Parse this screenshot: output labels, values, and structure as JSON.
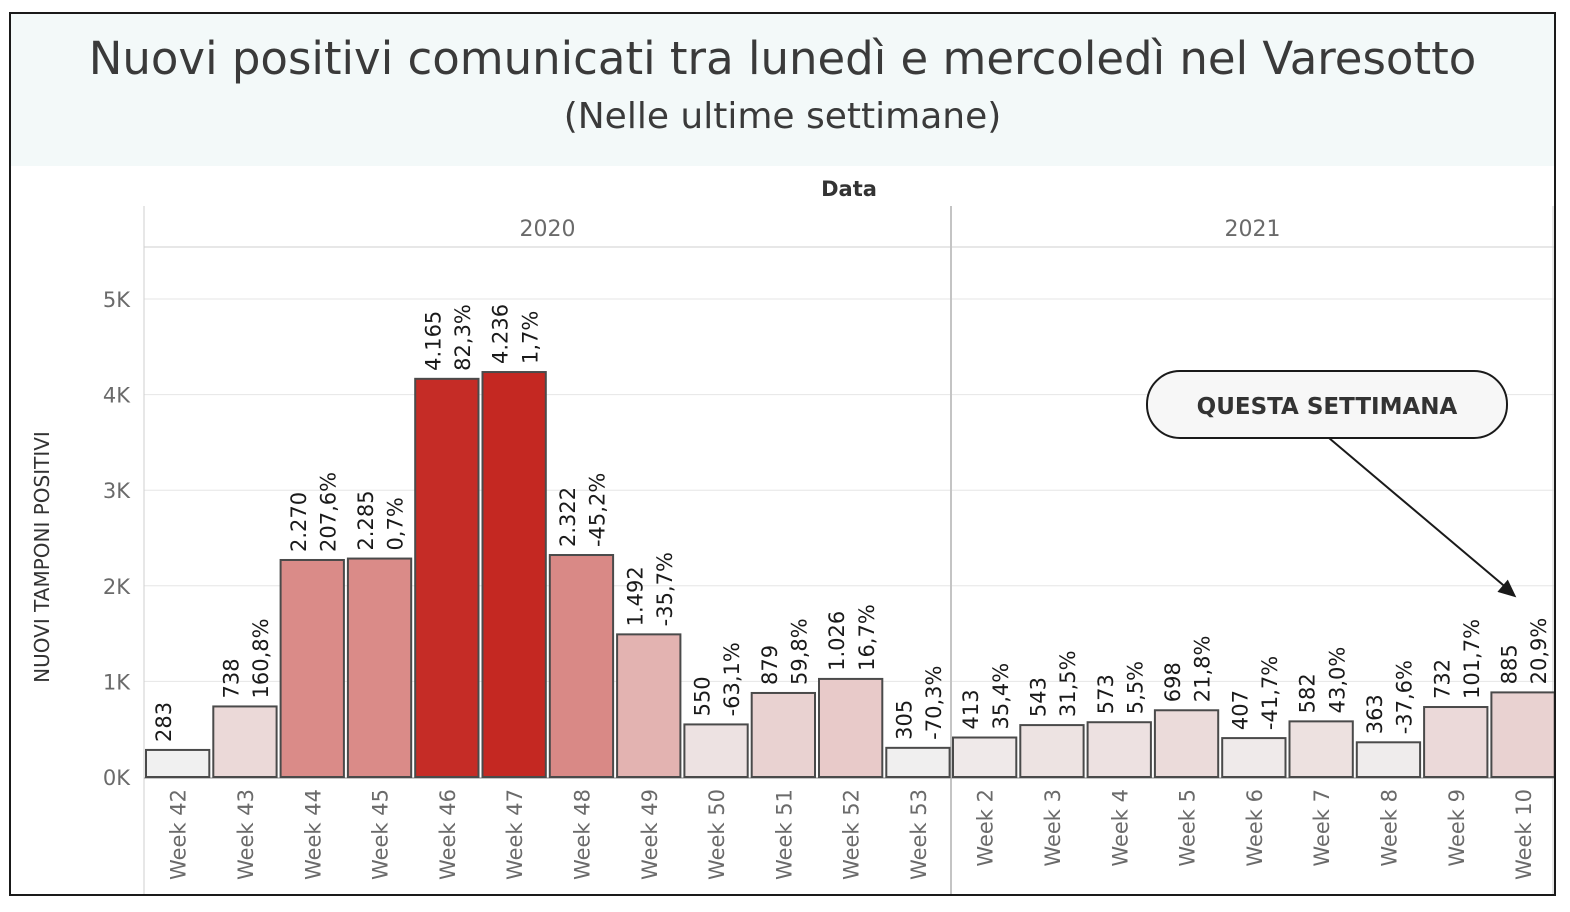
{
  "header": {
    "title": "Nuovi positivi comunicati tra lunedì e mercoledì nel Varesotto",
    "subtitle": "(Nelle ultime settimane)"
  },
  "chart_data": {
    "type": "bar",
    "xlabel": "Data",
    "ylabel": "NUOVI TAMPONI POSITIVI",
    "ylim": [
      0,
      5500
    ],
    "yticks": [
      0,
      1000,
      2000,
      3000,
      4000,
      5000
    ],
    "ytick_labels": [
      "0K",
      "1K",
      "2K",
      "3K",
      "4K",
      "5K"
    ],
    "grid": true,
    "groups": [
      {
        "name": "2020",
        "categories": [
          "Week 42",
          "Week 43",
          "Week 44",
          "Week 45",
          "Week 46",
          "Week 47",
          "Week 48",
          "Week 49",
          "Week 50",
          "Week 51",
          "Week 52",
          "Week 53"
        ],
        "values": [
          283,
          738,
          2270,
          2285,
          4165,
          4236,
          2322,
          1492,
          550,
          879,
          1026,
          305
        ],
        "value_labels": [
          "283",
          "738",
          "2.270",
          "2.285",
          "4.165",
          "4.236",
          "2.322",
          "1.492",
          "550",
          "879",
          "1.026",
          "305"
        ],
        "pct_labels": [
          "",
          "160,8%",
          "207,6%",
          "0,7%",
          "82,3%",
          "1,7%",
          "-45,2%",
          "-35,7%",
          "-63,1%",
          "59,8%",
          "16,7%",
          "-70,3%"
        ]
      },
      {
        "name": "2021",
        "categories": [
          "Week 2",
          "Week 3",
          "Week 4",
          "Week 5",
          "Week 6",
          "Week 7",
          "Week 8",
          "Week 9",
          "Week 10"
        ],
        "values": [
          413,
          543,
          573,
          698,
          407,
          582,
          363,
          732,
          885
        ],
        "value_labels": [
          "413",
          "543",
          "573",
          "698",
          "407",
          "582",
          "363",
          "732",
          "885"
        ],
        "pct_labels": [
          "35,4%",
          "31,5%",
          "5,5%",
          "21,8%",
          "-41,7%",
          "43,0%",
          "-37,6%",
          "101,7%",
          "20,9%"
        ]
      }
    ],
    "color_scale": {
      "low": "#f0f0f0",
      "high": "#c42822",
      "bar_stroke": "#4a4a4a"
    },
    "annotation": {
      "text": "QUESTA SETTIMANA",
      "target": "Week 10"
    }
  }
}
